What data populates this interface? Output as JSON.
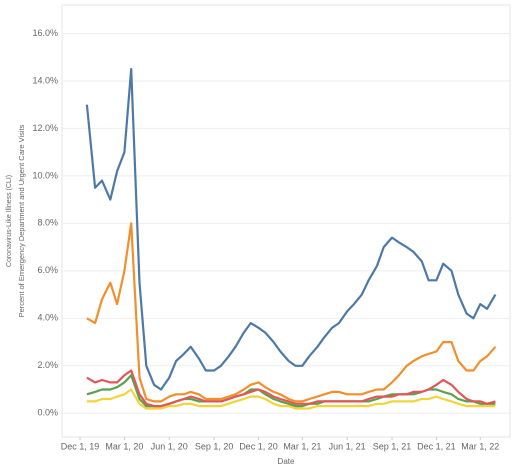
{
  "chart_data": {
    "type": "line",
    "y_label_lines": [
      "Coronavirus-Like Illness (CLI)",
      "Percent of Emergency Department and Urgent Care Visits"
    ],
    "x_label": "Date",
    "x": [
      "2019-12-15",
      "2020-01-01",
      "2020-01-15",
      "2020-02-01",
      "2020-02-15",
      "2020-03-01",
      "2020-03-15",
      "2020-04-01",
      "2020-04-15",
      "2020-05-01",
      "2020-05-15",
      "2020-06-01",
      "2020-06-15",
      "2020-07-01",
      "2020-07-15",
      "2020-08-01",
      "2020-08-15",
      "2020-09-01",
      "2020-09-15",
      "2020-10-01",
      "2020-10-15",
      "2020-11-01",
      "2020-11-15",
      "2020-12-01",
      "2020-12-15",
      "2021-01-01",
      "2021-01-15",
      "2021-02-01",
      "2021-02-15",
      "2021-03-01",
      "2021-03-15",
      "2021-04-01",
      "2021-04-15",
      "2021-05-01",
      "2021-05-15",
      "2021-06-01",
      "2021-06-15",
      "2021-07-01",
      "2021-07-15",
      "2021-08-01",
      "2021-08-15",
      "2021-09-01",
      "2021-09-15",
      "2021-10-01",
      "2021-10-15",
      "2021-11-01",
      "2021-11-15",
      "2021-12-01",
      "2021-12-15",
      "2022-01-01",
      "2022-01-15",
      "2022-02-01",
      "2022-02-15",
      "2022-03-01",
      "2022-03-15",
      "2022-04-01"
    ],
    "series": [
      {
        "color": "#f0d43a",
        "values": [
          0.5,
          0.5,
          0.6,
          0.6,
          0.7,
          0.8,
          1.0,
          0.4,
          0.2,
          0.2,
          0.2,
          0.3,
          0.3,
          0.4,
          0.4,
          0.3,
          0.3,
          0.3,
          0.3,
          0.4,
          0.5,
          0.6,
          0.7,
          0.7,
          0.6,
          0.4,
          0.3,
          0.3,
          0.2,
          0.2,
          0.2,
          0.3,
          0.3,
          0.3,
          0.3,
          0.3,
          0.3,
          0.3,
          0.3,
          0.4,
          0.4,
          0.5,
          0.5,
          0.5,
          0.5,
          0.6,
          0.6,
          0.7,
          0.6,
          0.5,
          0.4,
          0.3,
          0.3,
          0.3,
          0.3,
          0.3
        ]
      },
      {
        "color": "#59a14f",
        "values": [
          0.8,
          0.9,
          1.0,
          1.0,
          1.1,
          1.3,
          1.6,
          0.6,
          0.3,
          0.3,
          0.3,
          0.4,
          0.5,
          0.6,
          0.6,
          0.5,
          0.5,
          0.5,
          0.5,
          0.6,
          0.7,
          0.8,
          1.0,
          1.0,
          0.8,
          0.6,
          0.5,
          0.4,
          0.3,
          0.3,
          0.4,
          0.4,
          0.5,
          0.5,
          0.5,
          0.5,
          0.5,
          0.5,
          0.5,
          0.6,
          0.7,
          0.8,
          0.8,
          0.8,
          0.8,
          0.9,
          1.0,
          1.0,
          0.9,
          0.8,
          0.6,
          0.5,
          0.5,
          0.4,
          0.4,
          0.4
        ]
      },
      {
        "color": "#e15759",
        "values": [
          1.5,
          1.3,
          1.4,
          1.3,
          1.3,
          1.6,
          1.8,
          0.8,
          0.4,
          0.3,
          0.3,
          0.4,
          0.5,
          0.6,
          0.7,
          0.6,
          0.5,
          0.5,
          0.5,
          0.6,
          0.7,
          0.8,
          0.9,
          1.0,
          0.9,
          0.7,
          0.6,
          0.5,
          0.4,
          0.4,
          0.4,
          0.5,
          0.5,
          0.5,
          0.5,
          0.5,
          0.5,
          0.5,
          0.6,
          0.7,
          0.7,
          0.7,
          0.8,
          0.8,
          0.9,
          0.9,
          1.0,
          1.2,
          1.4,
          1.2,
          0.9,
          0.6,
          0.5,
          0.5,
          0.4,
          0.5
        ]
      },
      {
        "color": "#f28e2b",
        "values": [
          4.0,
          3.8,
          4.8,
          5.5,
          4.6,
          6.0,
          8.0,
          1.5,
          0.6,
          0.5,
          0.5,
          0.7,
          0.8,
          0.8,
          0.9,
          0.8,
          0.6,
          0.6,
          0.6,
          0.7,
          0.8,
          1.0,
          1.2,
          1.3,
          1.1,
          0.9,
          0.8,
          0.6,
          0.5,
          0.5,
          0.6,
          0.7,
          0.8,
          0.9,
          0.9,
          0.8,
          0.8,
          0.8,
          0.9,
          1.0,
          1.0,
          1.3,
          1.6,
          2.0,
          2.2,
          2.4,
          2.5,
          2.6,
          3.0,
          3.0,
          2.2,
          1.8,
          1.8,
          2.2,
          2.4,
          2.8
        ]
      },
      {
        "color": "#4e79a7",
        "values": [
          13.0,
          9.5,
          9.8,
          9.0,
          10.2,
          11.0,
          14.5,
          5.5,
          2.0,
          1.2,
          1.0,
          1.5,
          2.2,
          2.5,
          2.8,
          2.3,
          1.8,
          1.8,
          2.0,
          2.4,
          2.8,
          3.4,
          3.8,
          3.6,
          3.4,
          3.0,
          2.6,
          2.2,
          2.0,
          2.0,
          2.4,
          2.8,
          3.2,
          3.6,
          3.8,
          4.3,
          4.6,
          5.0,
          5.6,
          6.2,
          7.0,
          7.4,
          7.2,
          7.0,
          6.8,
          6.4,
          5.6,
          5.6,
          6.3,
          6.0,
          5.0,
          4.2,
          4.0,
          4.6,
          4.4,
          5.0
        ]
      }
    ],
    "xlim": [
      "2019-10-25",
      "2022-05-01"
    ],
    "xticks": [
      {
        "value": "2019-12-01",
        "label": "Dec 1, 19"
      },
      {
        "value": "2020-03-01",
        "label": "Mar 1, 20"
      },
      {
        "value": "2020-06-01",
        "label": "Jun 1, 20"
      },
      {
        "value": "2020-09-01",
        "label": "Sep 1, 20"
      },
      {
        "value": "2020-12-01",
        "label": "Dec 1, 20"
      },
      {
        "value": "2021-03-01",
        "label": "Mar 1, 21"
      },
      {
        "value": "2021-06-01",
        "label": "Jun 1, 21"
      },
      {
        "value": "2021-09-01",
        "label": "Sep 1, 21"
      },
      {
        "value": "2021-12-01",
        "label": "Dec 1, 21"
      },
      {
        "value": "2022-03-01",
        "label": "Mar 1, 22"
      }
    ],
    "ylim": [
      -1,
      17.2
    ],
    "yticks": [
      {
        "value": 0,
        "label": "0.0%"
      },
      {
        "value": 2,
        "label": "2.0%"
      },
      {
        "value": 4,
        "label": "4.0%"
      },
      {
        "value": 6,
        "label": "6.0%"
      },
      {
        "value": 8,
        "label": "8.0%"
      },
      {
        "value": 10,
        "label": "10.0%"
      },
      {
        "value": 12,
        "label": "12.0%"
      },
      {
        "value": 14,
        "label": "14.0%"
      },
      {
        "value": 16,
        "label": "16.0%"
      }
    ],
    "grid": true
  }
}
